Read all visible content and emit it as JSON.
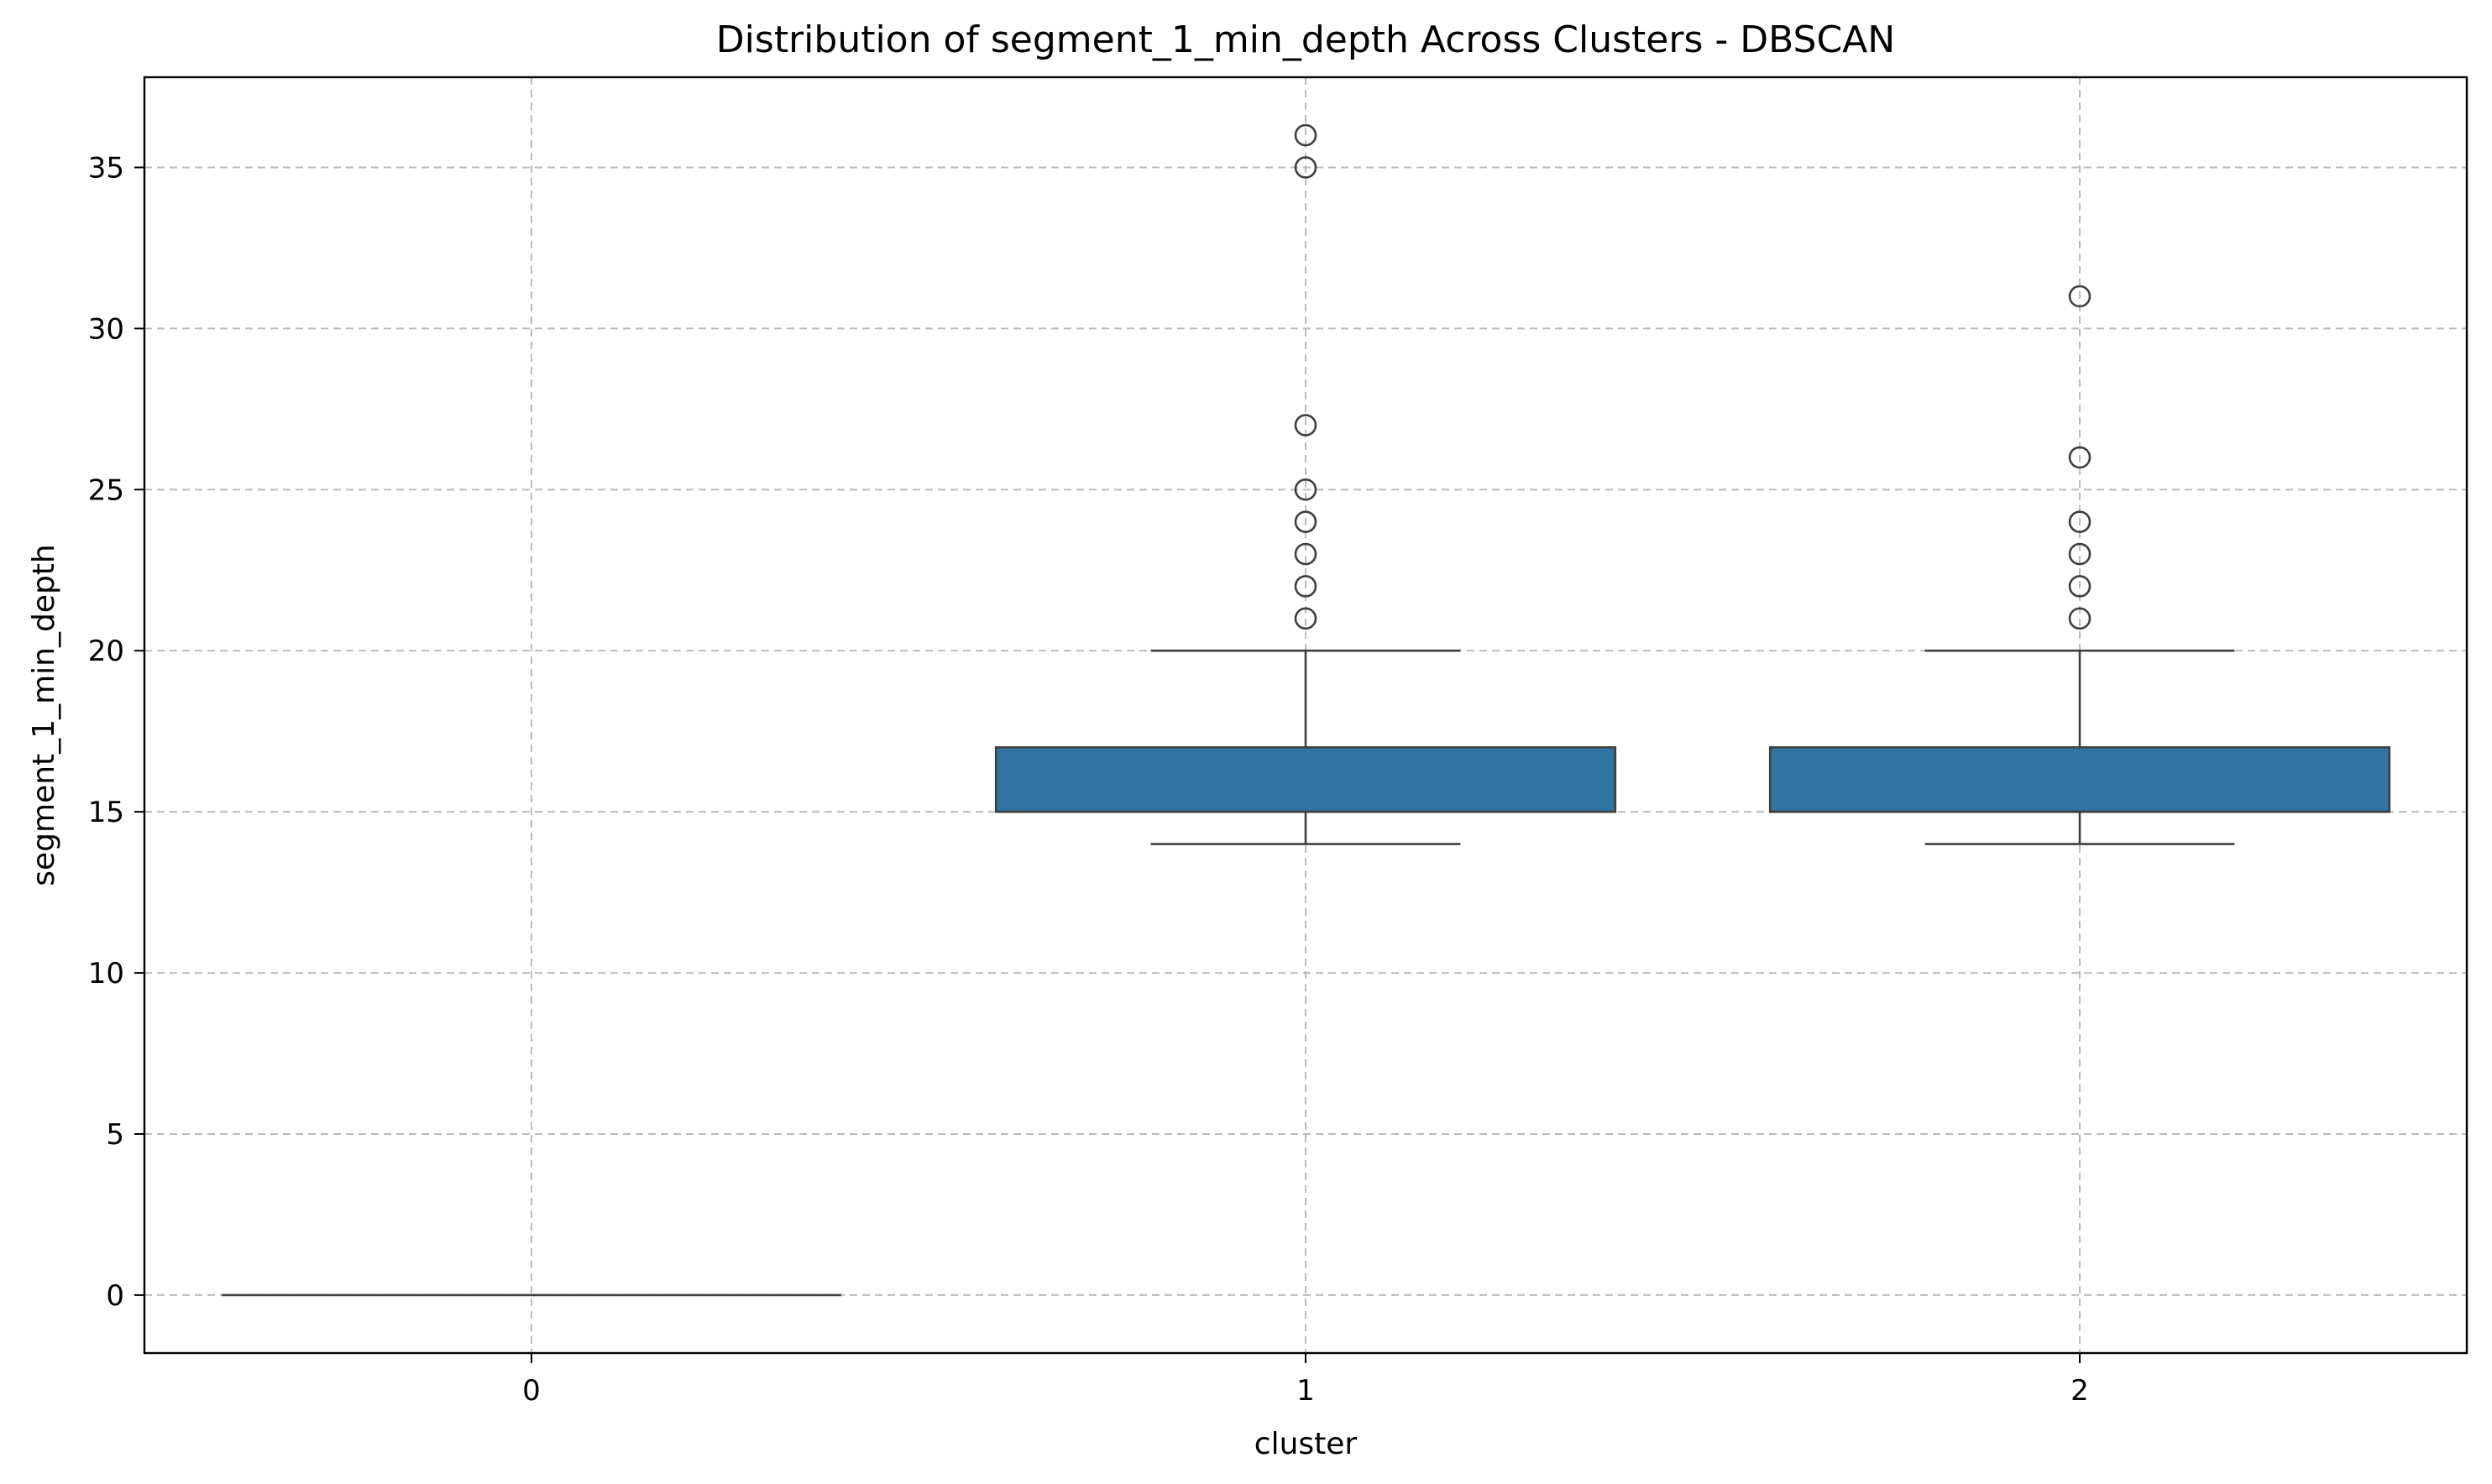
{
  "chart_data": {
    "type": "box",
    "title": "Distribution of segment_1_min_depth Across Clusters - DBSCAN",
    "xlabel": "cluster",
    "ylabel": "segment_1_min_depth",
    "categories": [
      "0",
      "1",
      "2"
    ],
    "ylim": [
      -1.8,
      37.8
    ],
    "yticks": [
      0,
      5,
      10,
      15,
      20,
      25,
      30,
      35
    ],
    "grid": true,
    "color": "#3274a1",
    "line_color": "#3f3f3f",
    "boxes": [
      {
        "category": "0",
        "whislo": 0,
        "q1": 0,
        "median": 0,
        "q3": 0,
        "whishi": 0,
        "fliers": []
      },
      {
        "category": "1",
        "whislo": 14,
        "q1": 15,
        "median": 15,
        "q3": 17,
        "whishi": 20,
        "fliers": [
          21,
          22,
          23,
          24,
          25,
          27,
          35,
          36
        ]
      },
      {
        "category": "2",
        "whislo": 14,
        "q1": 15,
        "median": 15,
        "q3": 17,
        "whishi": 20,
        "fliers": [
          21,
          22,
          23,
          24,
          26,
          31
        ]
      }
    ]
  }
}
